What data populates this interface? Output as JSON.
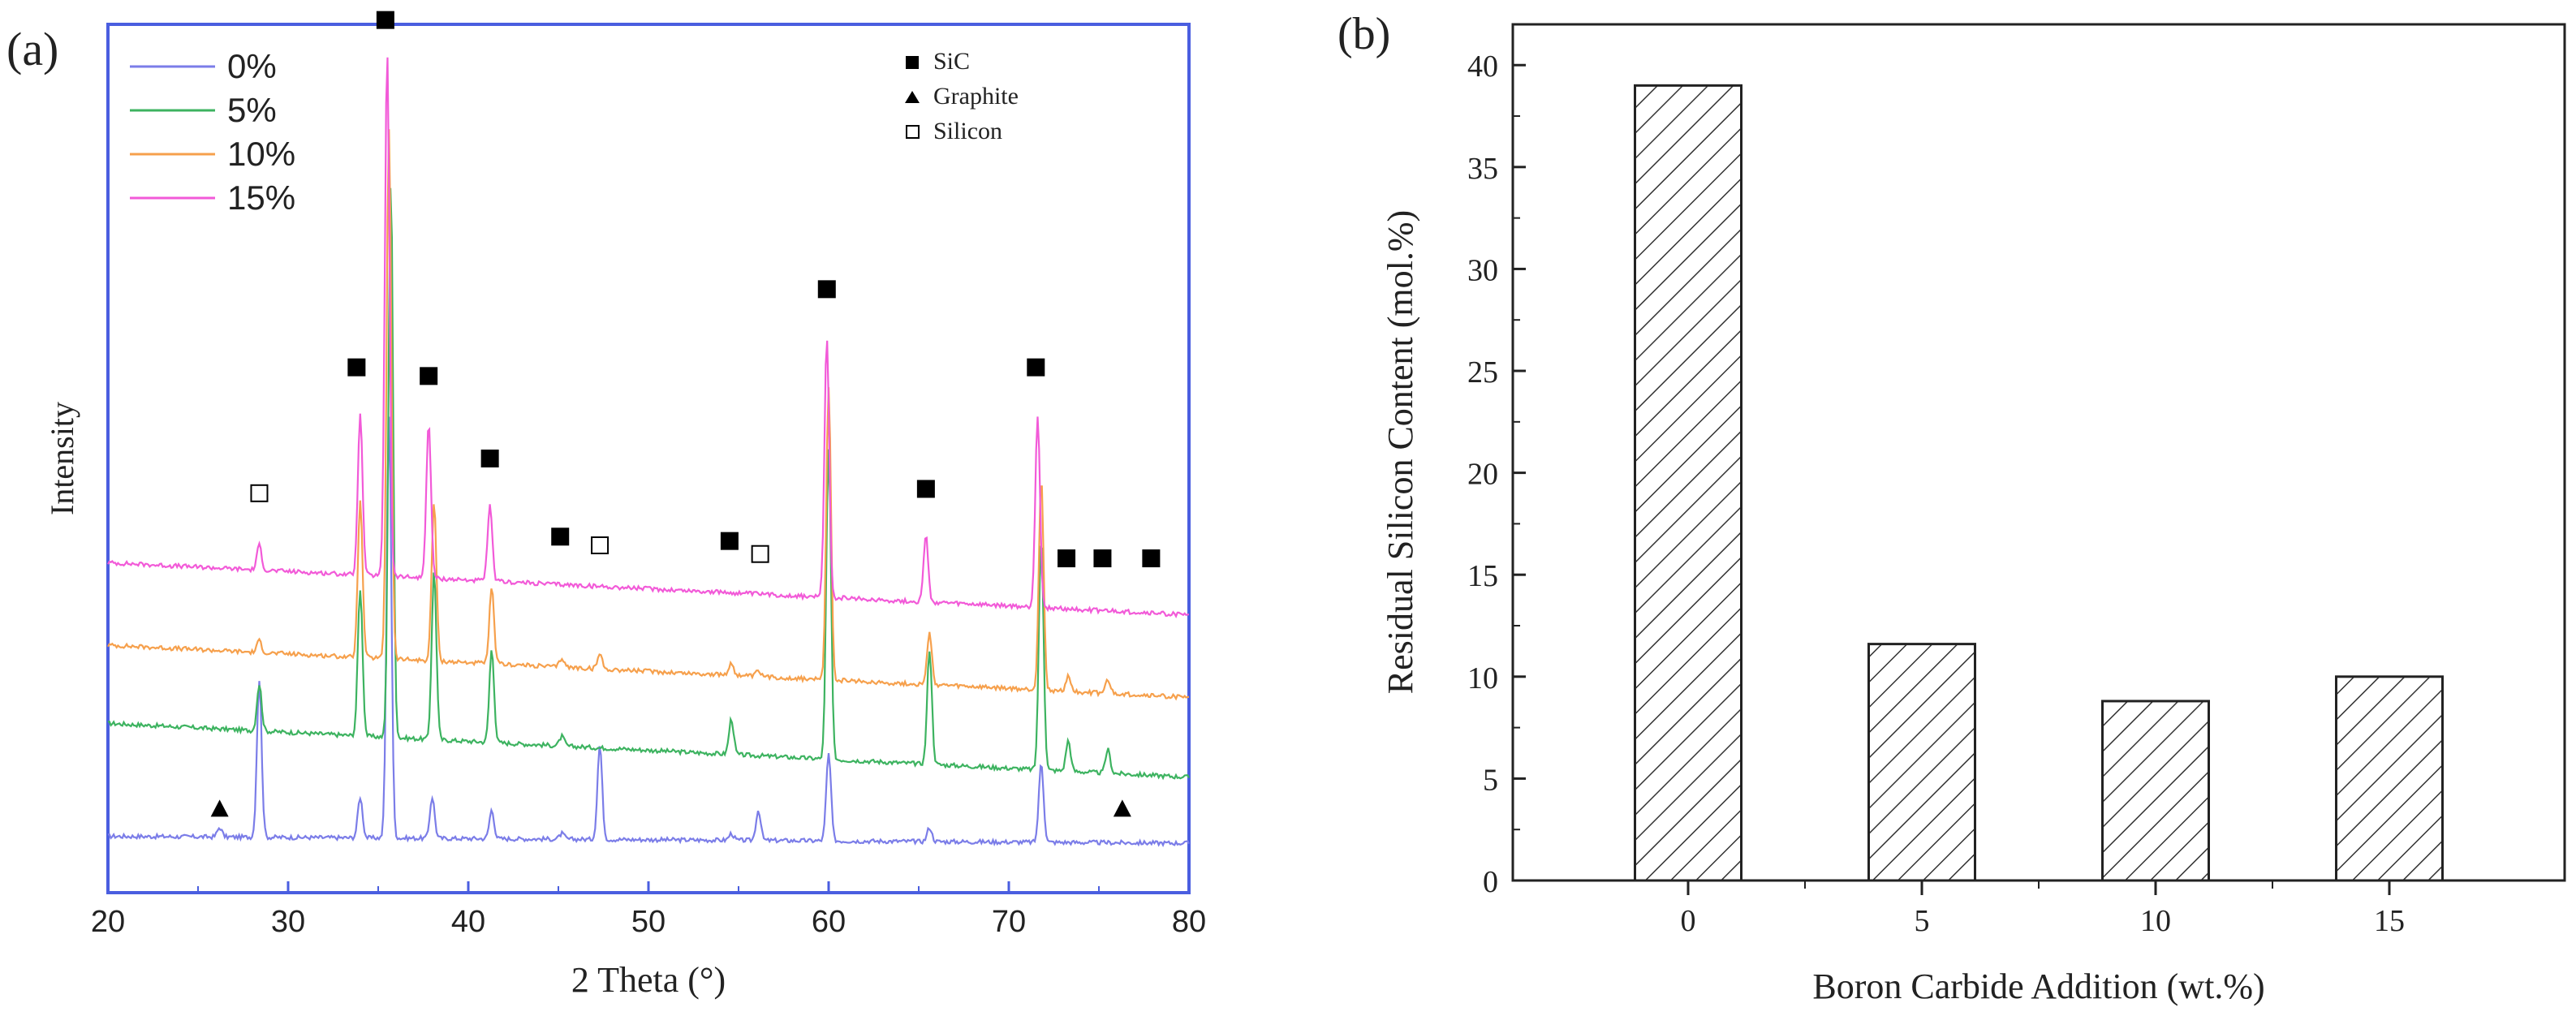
{
  "chart_data": [
    {
      "panel_label": "(a)",
      "type": "line",
      "title": "",
      "xlabel": "2 Theta (°)",
      "ylabel": "Intensity",
      "xlim": [
        20,
        80
      ],
      "x_ticks": [
        "20",
        "30",
        "40",
        "50",
        "60",
        "70",
        "80"
      ],
      "ylim": [
        0,
        100
      ],
      "grid": false,
      "legend_position": "top-left",
      "series": [
        {
          "name": "0%",
          "color": "#7b7de8",
          "baseline": 6.5,
          "points": [
            [
              20,
              6.5
            ],
            [
              25,
              6.2
            ],
            [
              26.2,
              7.5
            ],
            [
              28.4,
              24.5
            ],
            [
              34,
              11
            ],
            [
              35.6,
              55
            ],
            [
              38,
              11
            ],
            [
              41.3,
              9.5
            ],
            [
              45.2,
              6.8
            ],
            [
              47.3,
              17
            ],
            [
              54.6,
              6.8
            ],
            [
              56.1,
              9.5
            ],
            [
              60,
              16
            ],
            [
              65.6,
              7.5
            ],
            [
              69,
              6.4
            ],
            [
              71.8,
              15
            ],
            [
              73.3,
              6
            ],
            [
              75.5,
              5.8
            ],
            [
              76.3,
              6.3
            ],
            [
              78,
              5.8
            ],
            [
              80,
              5.7
            ]
          ]
        },
        {
          "name": "5%",
          "color": "#3db360",
          "baseline": 15,
          "points": [
            [
              20,
              19.5
            ],
            [
              25,
              18
            ],
            [
              28.4,
              24
            ],
            [
              30,
              16.5
            ],
            [
              34,
              35
            ],
            [
              35.7,
              82
            ],
            [
              38.1,
              37
            ],
            [
              41.3,
              28
            ],
            [
              45.2,
              18
            ],
            [
              47.3,
              15.5
            ],
            [
              54.6,
              20
            ],
            [
              56.1,
              14.5
            ],
            [
              60,
              51
            ],
            [
              65.6,
              28
            ],
            [
              71.8,
              41
            ],
            [
              73.3,
              17.5
            ],
            [
              75.5,
              16.5
            ],
            [
              78,
              13.5
            ],
            [
              80,
              13.3
            ]
          ]
        },
        {
          "name": "10%",
          "color": "#f6a04c",
          "baseline": 24,
          "points": [
            [
              20,
              28.5
            ],
            [
              25,
              27.5
            ],
            [
              28.4,
              29
            ],
            [
              30,
              26
            ],
            [
              34,
              45
            ],
            [
              35.6,
              88
            ],
            [
              38.1,
              45
            ],
            [
              41.3,
              35
            ],
            [
              45.2,
              27
            ],
            [
              47.3,
              27.5
            ],
            [
              54.6,
              26.5
            ],
            [
              56.1,
              25.5
            ],
            [
              60,
              58
            ],
            [
              65.6,
              30
            ],
            [
              71.8,
              48
            ],
            [
              73.3,
              25
            ],
            [
              75.5,
              24.5
            ],
            [
              78,
              23
            ],
            [
              80,
              22.5
            ]
          ]
        },
        {
          "name": "15%",
          "color": "#f25ad8",
          "baseline": 32,
          "points": [
            [
              20,
              38
            ],
            [
              25,
              37.5
            ],
            [
              28.4,
              40
            ],
            [
              30,
              36
            ],
            [
              34,
              55
            ],
            [
              35.5,
              97
            ],
            [
              37.8,
              54
            ],
            [
              41.2,
              44.5
            ],
            [
              45.2,
              35.5
            ],
            [
              47.3,
              34
            ],
            [
              54.6,
              35
            ],
            [
              56.1,
              33
            ],
            [
              59.9,
              64
            ],
            [
              65.4,
              41
            ],
            [
              71.6,
              55
            ],
            [
              73.2,
              33
            ],
            [
              75.5,
              32.5
            ],
            [
              78,
              32
            ],
            [
              80,
              32
            ]
          ]
        }
      ],
      "markers_legend": [
        {
          "symbol": "filled-square",
          "label": "SiC"
        },
        {
          "symbol": "filled-triangle",
          "label": "Graphite"
        },
        {
          "symbol": "open-square",
          "label": "Silicon"
        }
      ],
      "peak_annotations": [
        {
          "x": 35.4,
          "phase": "SiC"
        },
        {
          "x": 33.8,
          "phase": "SiC"
        },
        {
          "x": 37.8,
          "phase": "SiC"
        },
        {
          "x": 41.2,
          "phase": "SiC"
        },
        {
          "x": 45.1,
          "phase": "SiC"
        },
        {
          "x": 54.5,
          "phase": "SiC"
        },
        {
          "x": 59.9,
          "phase": "SiC"
        },
        {
          "x": 65.4,
          "phase": "SiC"
        },
        {
          "x": 71.5,
          "phase": "SiC"
        },
        {
          "x": 73.2,
          "phase": "SiC"
        },
        {
          "x": 75.2,
          "phase": "SiC"
        },
        {
          "x": 77.9,
          "phase": "SiC"
        },
        {
          "x": 28.4,
          "phase": "Silicon"
        },
        {
          "x": 47.3,
          "phase": "Silicon"
        },
        {
          "x": 56.2,
          "phase": "Silicon"
        },
        {
          "x": 26.2,
          "phase": "Graphite"
        },
        {
          "x": 76.3,
          "phase": "Graphite"
        }
      ]
    },
    {
      "panel_label": "(b)",
      "type": "bar",
      "title": "",
      "xlabel": "Boron Carbide Addition (wt.%)",
      "ylabel": "Residual Silicon Content (mol.%)",
      "categories": [
        "0",
        "5",
        "10",
        "15"
      ],
      "values": [
        39,
        11.6,
        8.8,
        10
      ],
      "ylim": [
        0,
        42
      ],
      "y_ticks": [
        "0",
        "5",
        "10",
        "15",
        "20",
        "25",
        "30",
        "35",
        "40"
      ],
      "bar_fill": "diagonal-hatch",
      "grid": false
    }
  ]
}
